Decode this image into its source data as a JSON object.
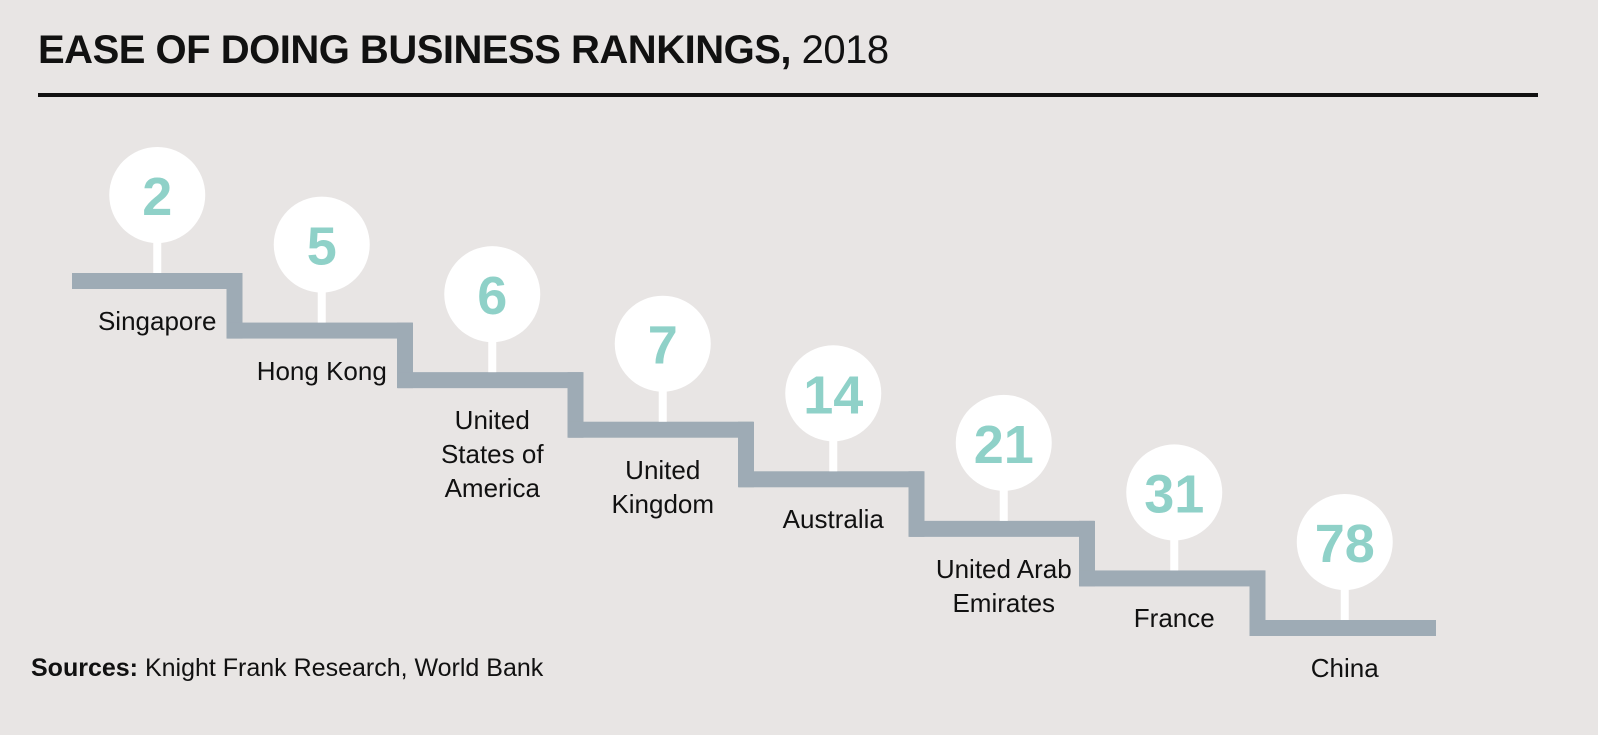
{
  "title": {
    "main": "EASE OF DOING BUSINESS RANKINGS,",
    "year": "2018"
  },
  "source": {
    "label": "Sources:",
    "text": "Knight Frank Research, World Bank"
  },
  "colors": {
    "background": "#e8e5e4",
    "step": "#9eabb5",
    "circle": "#ffffff",
    "rank_text": "#8fd1c8",
    "text": "#111111"
  },
  "chart_data": {
    "type": "table",
    "title": "EASE OF DOING BUSINESS RANKINGS, 2018",
    "categories": [
      "Singapore",
      "Hong Kong",
      "United States of America",
      "United Kingdom",
      "Australia",
      "United Arab Emirates",
      "France",
      "China"
    ],
    "values": [
      2,
      5,
      6,
      7,
      14,
      21,
      31,
      78
    ],
    "items": [
      {
        "country": "Singapore",
        "label": "Singapore",
        "rank": "2"
      },
      {
        "country": "Hong Kong",
        "label": "Hong Kong",
        "rank": "5"
      },
      {
        "country": "United States of America",
        "label": "United\nStates of\nAmerica",
        "rank": "6"
      },
      {
        "country": "United Kingdom",
        "label": "United\nKingdom",
        "rank": "7"
      },
      {
        "country": "Australia",
        "label": "Australia",
        "rank": "14"
      },
      {
        "country": "United Arab Emirates",
        "label": "United Arab\nEmirates",
        "rank": "21"
      },
      {
        "country": "France",
        "label": "France",
        "rank": "31"
      },
      {
        "country": "China",
        "label": "China",
        "rank": "78"
      }
    ],
    "source": "Knight Frank Research, World Bank"
  }
}
